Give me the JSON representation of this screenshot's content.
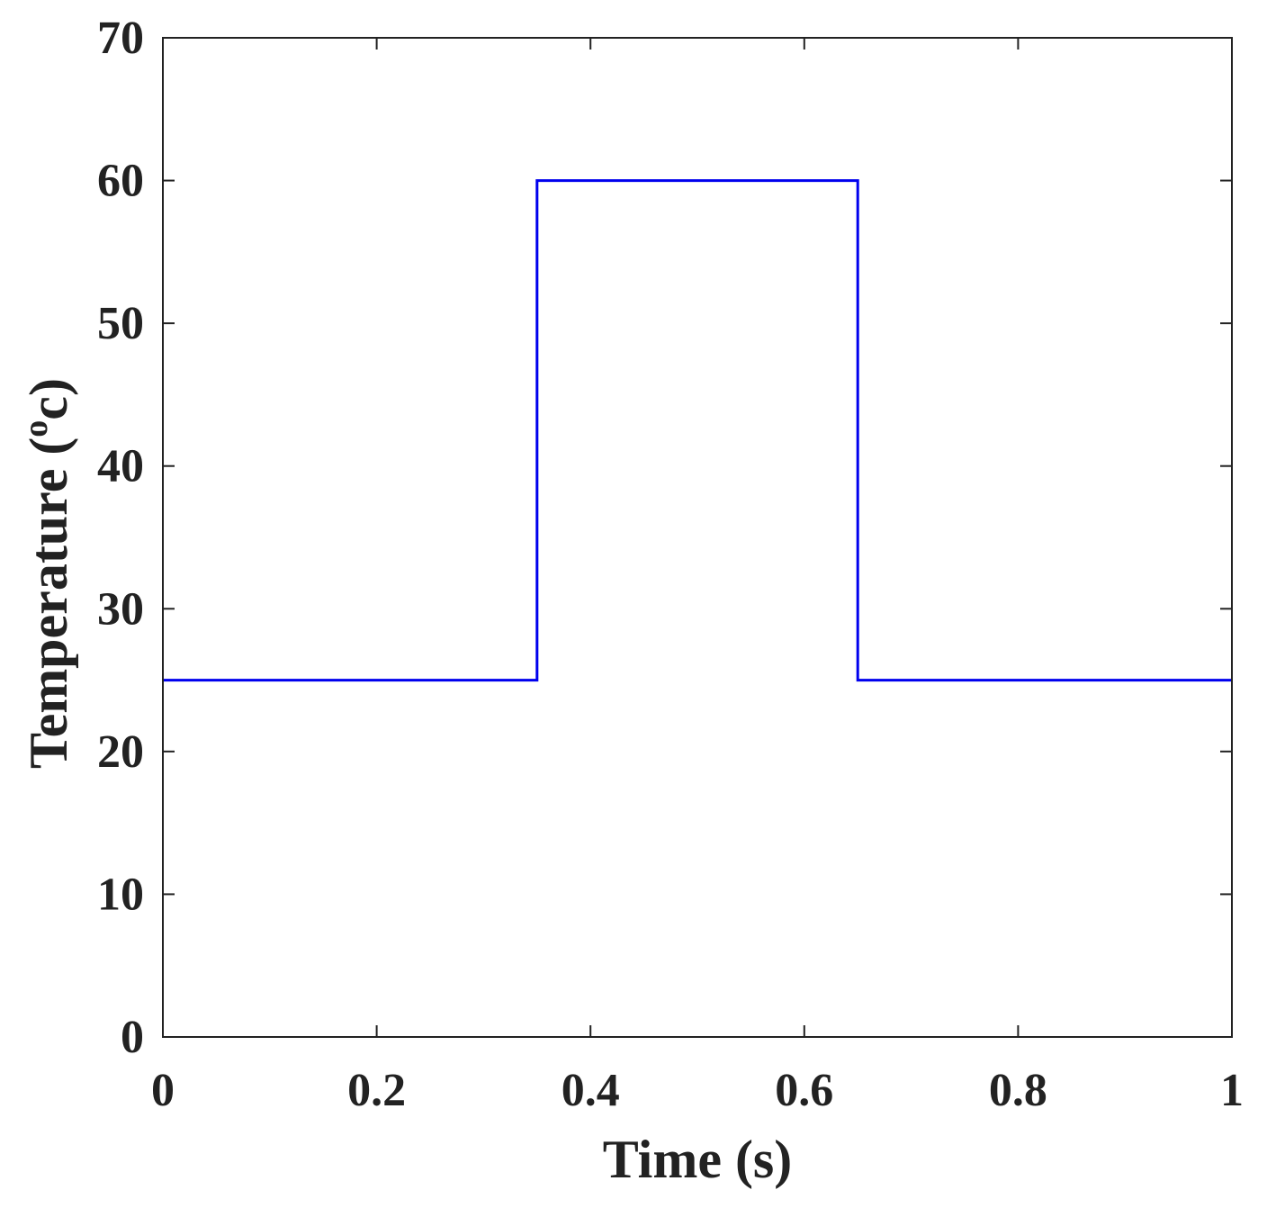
{
  "chart_data": {
    "type": "line",
    "title": "",
    "xlabel": "Time (s)",
    "ylabel": {
      "prefix": "Temperature (",
      "superscript": "o",
      "suffix": "c)"
    },
    "xlim": [
      0,
      1
    ],
    "ylim": [
      0,
      70
    ],
    "xticks": [
      0,
      0.2,
      0.4,
      0.6,
      0.8,
      1
    ],
    "xtick_labels": [
      "0",
      "0.2",
      "0.4",
      "0.6",
      "0.8",
      "1"
    ],
    "yticks": [
      0,
      10,
      20,
      30,
      40,
      50,
      60,
      70
    ],
    "ytick_labels": [
      "0",
      "10",
      "20",
      "30",
      "40",
      "50",
      "60",
      "70"
    ],
    "grid": false,
    "series": [
      {
        "color": "#0000ee",
        "x": [
          0,
          0.35,
          0.35,
          0.65,
          0.65,
          1
        ],
        "y": [
          25,
          25,
          60,
          60,
          25,
          25
        ]
      }
    ]
  }
}
